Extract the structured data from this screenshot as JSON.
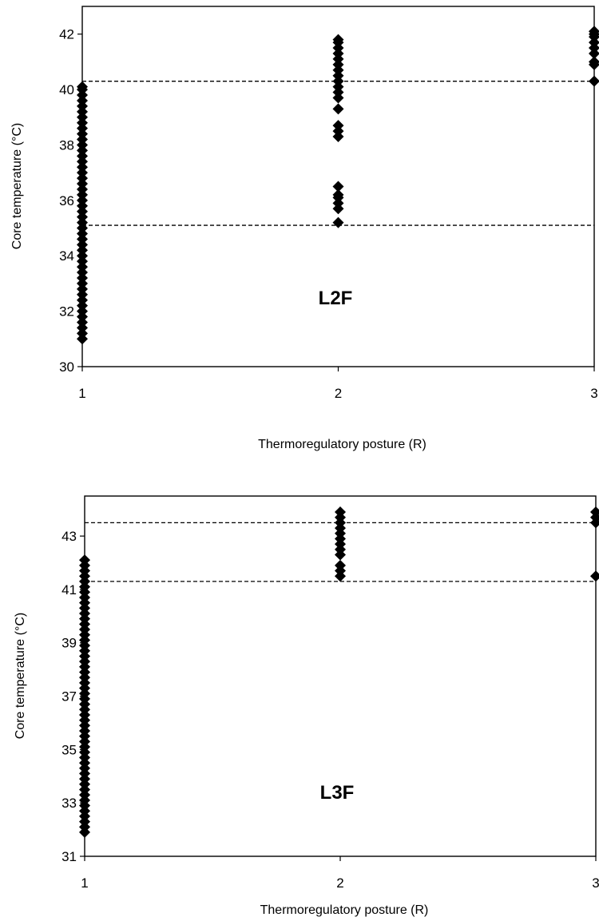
{
  "chart_data": [
    {
      "type": "scatter",
      "annotation": "L2F",
      "xlabel": "Thermoregulatory posture (R)",
      "ylabel": "Core temperature (°C)",
      "xlim": [
        1,
        3
      ],
      "ylim": [
        30,
        43
      ],
      "xticks": [
        1,
        2,
        3
      ],
      "yticks": [
        30,
        32,
        34,
        36,
        38,
        40,
        42
      ],
      "thresholds": [
        40.3,
        35.1
      ],
      "marker": "diamond",
      "marker_color": "#000000",
      "series": [
        {
          "x": 1,
          "y": [
            31.0,
            31.2,
            31.4,
            31.6,
            31.8,
            32.0,
            32.2,
            32.4,
            32.6,
            32.8,
            33.0,
            33.2,
            33.4,
            33.6,
            33.8,
            34.0,
            34.2,
            34.4,
            34.6,
            34.8,
            35.0,
            35.2,
            35.4,
            35.6,
            35.8,
            36.0,
            36.2,
            36.4,
            36.6,
            36.8,
            37.0,
            37.2,
            37.4,
            37.6,
            37.8,
            38.0,
            38.2,
            38.4,
            38.6,
            38.8,
            39.0,
            39.2,
            39.4,
            39.6,
            39.8,
            40.0,
            40.1
          ]
        },
        {
          "x": 2,
          "y": [
            35.2,
            35.7,
            35.9,
            36.1,
            36.2,
            36.5,
            38.3,
            38.5,
            38.7,
            39.3,
            39.7,
            39.9,
            40.1,
            40.3,
            40.5,
            40.7,
            40.9,
            41.1,
            41.3,
            41.5,
            41.7,
            41.8
          ]
        },
        {
          "x": 3,
          "y": [
            40.3,
            40.9,
            41.0,
            41.3,
            41.5,
            41.7,
            41.9,
            42.0,
            42.1
          ]
        }
      ]
    },
    {
      "type": "scatter",
      "annotation": "L3F",
      "xlabel": "Thermoregulatory posture (R)",
      "ylabel": "Core temperature (°C)",
      "xlim": [
        1,
        3
      ],
      "ylim": [
        31,
        44.5
      ],
      "xticks": [
        1,
        2,
        3
      ],
      "yticks": [
        31,
        33,
        35,
        37,
        39,
        41,
        43
      ],
      "thresholds": [
        43.5,
        41.3
      ],
      "marker": "diamond",
      "marker_color": "#000000",
      "series": [
        {
          "x": 1,
          "y": [
            31.9,
            32.1,
            32.3,
            32.5,
            32.7,
            32.9,
            33.1,
            33.3,
            33.5,
            33.7,
            33.9,
            34.1,
            34.3,
            34.5,
            34.7,
            34.9,
            35.1,
            35.3,
            35.5,
            35.7,
            35.9,
            36.1,
            36.3,
            36.5,
            36.7,
            36.9,
            37.1,
            37.3,
            37.5,
            37.7,
            37.9,
            38.1,
            38.3,
            38.5,
            38.7,
            38.9,
            39.1,
            39.3,
            39.5,
            39.7,
            39.9,
            40.1,
            40.3,
            40.5,
            40.7,
            40.9,
            41.1,
            41.3,
            41.5,
            41.7,
            41.9,
            42.1
          ]
        },
        {
          "x": 2,
          "y": [
            41.5,
            41.7,
            41.9,
            42.3,
            42.5,
            42.7,
            42.9,
            43.1,
            43.3,
            43.5,
            43.7,
            43.9
          ]
        },
        {
          "x": 3,
          "y": [
            41.5,
            43.5,
            43.7,
            43.9
          ]
        }
      ]
    }
  ]
}
